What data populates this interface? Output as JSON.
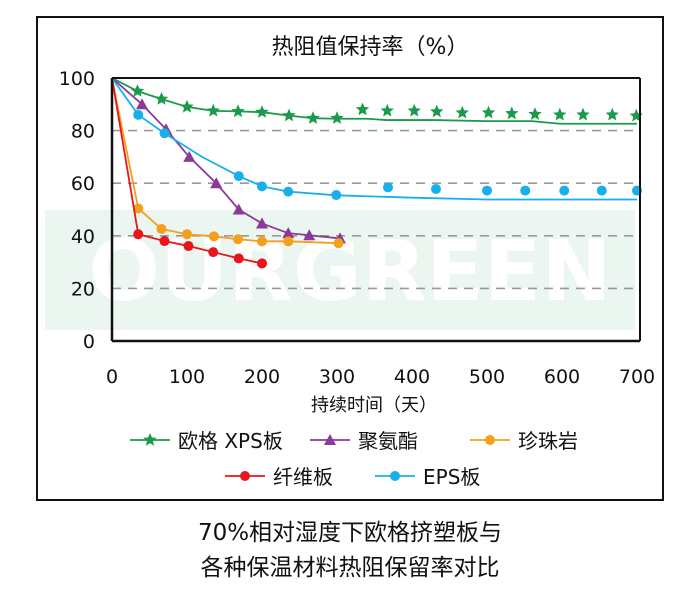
{
  "chart_data": {
    "type": "line",
    "title": "热阻值保持率（%）",
    "xlabel": "持续时间（天）",
    "ylabel": "",
    "xlim": [
      0,
      700
    ],
    "ylim": [
      0,
      100
    ],
    "x_ticks": [
      "0",
      "100",
      "200",
      "300",
      "400",
      "500",
      "600",
      "700"
    ],
    "y_ticks": [
      "0",
      "20",
      "40",
      "60",
      "80",
      "100"
    ],
    "grid": "dashed horizontal at 20,40,60,80",
    "legend": "bottom",
    "watermark": "OURGREEN",
    "series": [
      {
        "name": "欧格 XPS板",
        "color": "#1a9a4a",
        "marker": "star",
        "points": [
          [
            0,
            100
          ],
          [
            34,
            95
          ],
          [
            66,
            92
          ],
          [
            100,
            89
          ],
          [
            135,
            87.5
          ],
          [
            168,
            87.3
          ],
          [
            200,
            87
          ],
          [
            236,
            85.7
          ],
          [
            268,
            84.7
          ],
          [
            300,
            84.7
          ],
          [
            334,
            88
          ],
          [
            367,
            87.5
          ],
          [
            403,
            87.5
          ],
          [
            433,
            87.2
          ],
          [
            467,
            86.8
          ],
          [
            502,
            86.8
          ],
          [
            533,
            86.5
          ],
          [
            564,
            86.2
          ],
          [
            597,
            86
          ],
          [
            628,
            86
          ],
          [
            667,
            86
          ],
          [
            699,
            85.6
          ]
        ],
        "line": [
          [
            0,
            100
          ],
          [
            34,
            95
          ],
          [
            66,
            92
          ],
          [
            100,
            89
          ],
          [
            135,
            87.5
          ],
          [
            168,
            87.3
          ],
          [
            200,
            87
          ],
          [
            236,
            85.7
          ],
          [
            268,
            84.7
          ],
          [
            300,
            84.5
          ],
          [
            340,
            84.5
          ],
          [
            366,
            84
          ],
          [
            430,
            84
          ],
          [
            500,
            83.6
          ],
          [
            560,
            83.6
          ],
          [
            597,
            82.6
          ],
          [
            700,
            82.6
          ]
        ]
      },
      {
        "name": "聚氨酯",
        "color": "#8b3a9a",
        "marker": "triangle",
        "points": [
          [
            0,
            100
          ],
          [
            40,
            90
          ],
          [
            72,
            80.5
          ],
          [
            103,
            70
          ],
          [
            139,
            60
          ],
          [
            169,
            50
          ],
          [
            200,
            44.7
          ],
          [
            235,
            41
          ],
          [
            263,
            40.2
          ],
          [
            304,
            39
          ]
        ]
      },
      {
        "name": "珍珠岩",
        "color": "#f5a01a",
        "marker": "circle",
        "points": [
          [
            0,
            100
          ],
          [
            35,
            50.4
          ],
          [
            66,
            42.6
          ],
          [
            100,
            40.6
          ],
          [
            136,
            39.8
          ],
          [
            168,
            38.7
          ],
          [
            200,
            37.9
          ],
          [
            235,
            37.9
          ],
          [
            302,
            37.2
          ]
        ]
      },
      {
        "name": "纤维板",
        "color": "#e8151b",
        "marker": "circle",
        "points": [
          [
            0,
            100
          ],
          [
            35,
            40.6
          ],
          [
            70,
            38
          ],
          [
            102,
            36.1
          ],
          [
            135,
            33.8
          ],
          [
            169,
            31.4
          ],
          [
            200,
            29.5
          ]
        ]
      },
      {
        "name": "EPS板",
        "color": "#17b0ea",
        "marker": "circle",
        "points": [
          [
            0,
            100
          ],
          [
            35,
            86
          ],
          [
            70,
            79
          ],
          [
            169,
            62.7
          ],
          [
            200,
            58.8
          ],
          [
            235,
            56.8
          ],
          [
            299,
            55.5
          ],
          [
            368,
            58.4
          ],
          [
            432,
            57.8
          ],
          [
            500,
            57.2
          ],
          [
            551,
            57.2
          ],
          [
            603,
            57.2
          ],
          [
            653,
            57.2
          ],
          [
            700,
            57.2
          ]
        ],
        "line": [
          [
            0,
            100
          ],
          [
            35,
            86
          ],
          [
            70,
            79
          ],
          [
            120,
            70
          ],
          [
            169,
            62.7
          ],
          [
            200,
            58.8
          ],
          [
            235,
            56.8
          ],
          [
            299,
            55.4
          ],
          [
            400,
            54.5
          ],
          [
            500,
            53.8
          ],
          [
            700,
            53.8
          ]
        ]
      }
    ]
  },
  "caption": {
    "line1": "70%相对湿度下欧格挤塑板与",
    "line2": "各种保温材料热阻保留率对比"
  }
}
